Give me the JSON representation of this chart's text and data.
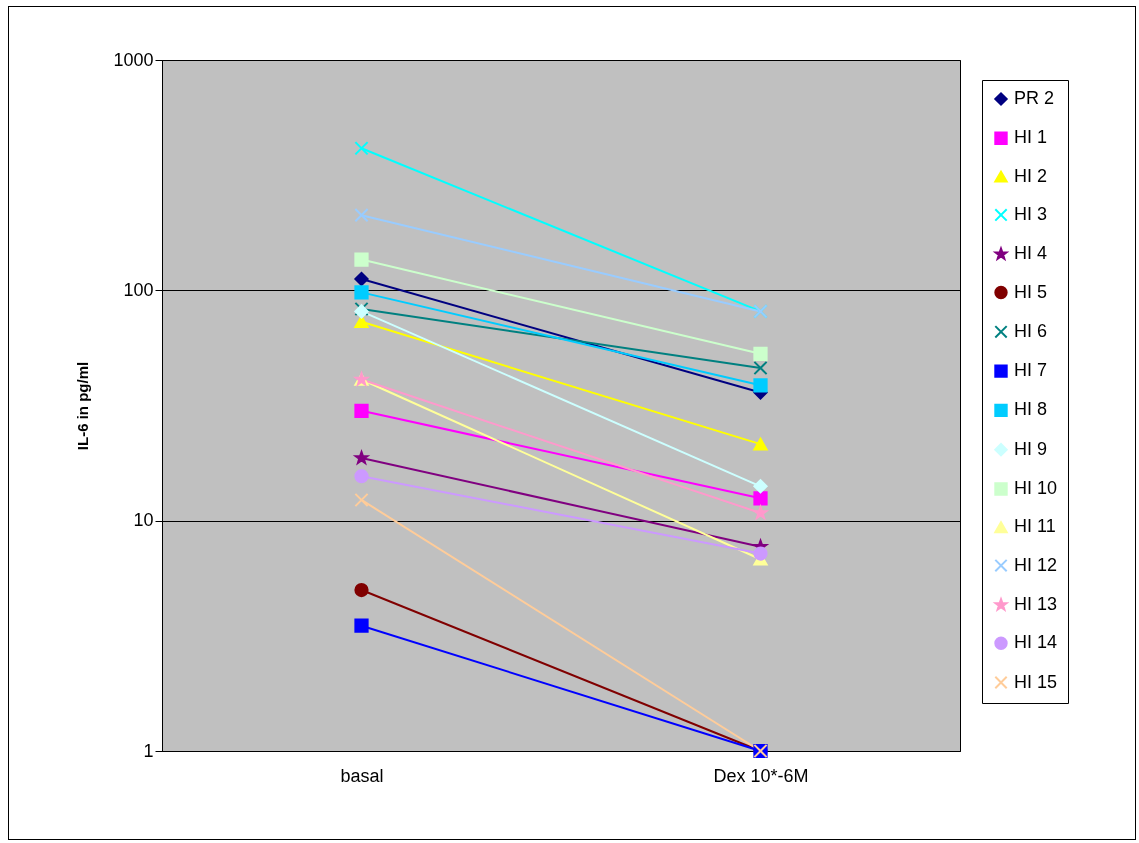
{
  "chart_data": {
    "type": "line",
    "ylabel": "IL-6 in pg/ml",
    "categories": [
      "basal",
      "Dex 10*-6M"
    ],
    "log": true,
    "ylim": [
      1,
      1000
    ],
    "yticks": [
      1,
      10,
      100,
      1000
    ],
    "grid": "y",
    "legend": "right",
    "series": [
      {
        "name": "PR 2",
        "color": "#000080",
        "marker": "diamond",
        "values": [
          112,
          36
        ]
      },
      {
        "name": "HI 1",
        "color": "#ff00ff",
        "marker": "square",
        "values": [
          30,
          12.5
        ]
      },
      {
        "name": "HI 2",
        "color": "#ffff00",
        "marker": "triangle",
        "values": [
          73,
          21.5
        ]
      },
      {
        "name": "HI 3",
        "color": "#00ffff",
        "marker": "cross",
        "values": [
          414,
          81
        ]
      },
      {
        "name": "HI 4",
        "color": "#800080",
        "marker": "star",
        "values": [
          18.7,
          7.7
        ]
      },
      {
        "name": "HI 5",
        "color": "#800000",
        "marker": "circle",
        "values": [
          5,
          1
        ]
      },
      {
        "name": "HI 6",
        "color": "#008080",
        "marker": "cross",
        "values": [
          83,
          46
        ]
      },
      {
        "name": "HI 7",
        "color": "#0000ff",
        "marker": "square",
        "values": [
          3.5,
          1
        ]
      },
      {
        "name": "HI 8",
        "color": "#00ccff",
        "marker": "square",
        "values": [
          98,
          38.7
        ]
      },
      {
        "name": "HI 9",
        "color": "#ccffff",
        "marker": "diamond",
        "values": [
          81,
          14.1
        ]
      },
      {
        "name": "HI 10",
        "color": "#ccffcc",
        "marker": "square",
        "values": [
          136,
          53
        ]
      },
      {
        "name": "HI 11",
        "color": "#ffff99",
        "marker": "triangle",
        "values": [
          41,
          6.8
        ]
      },
      {
        "name": "HI 12",
        "color": "#99ccff",
        "marker": "cross",
        "values": [
          212,
          81
        ]
      },
      {
        "name": "HI 13",
        "color": "#ff99cc",
        "marker": "star",
        "values": [
          41,
          10.8
        ]
      },
      {
        "name": "HI 14",
        "color": "#cc99ff",
        "marker": "circle",
        "values": [
          15.6,
          7.2
        ]
      },
      {
        "name": "HI 15",
        "color": "#ffcc99",
        "marker": "cross",
        "values": [
          12.3,
          1
        ]
      }
    ]
  }
}
